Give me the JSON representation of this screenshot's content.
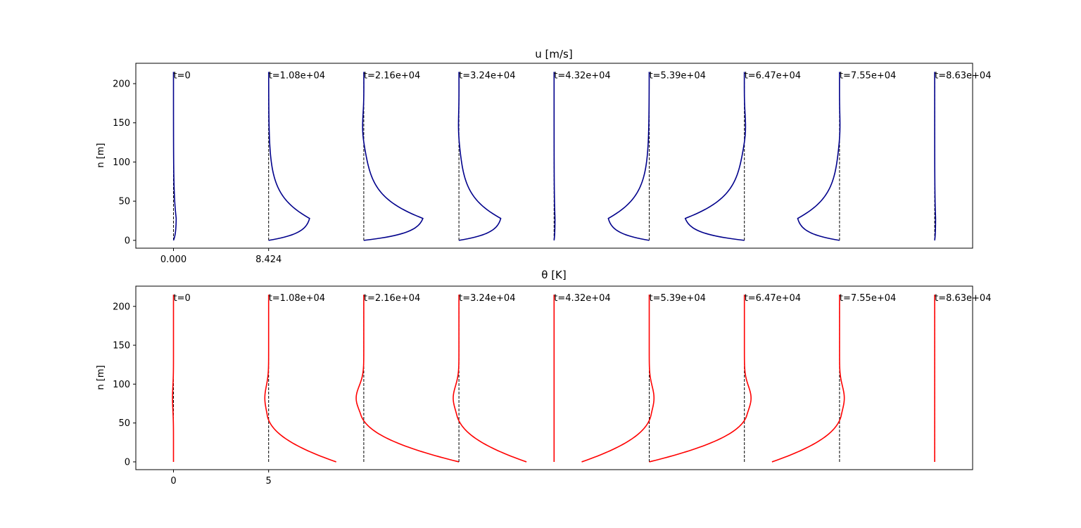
{
  "chart_data": [
    {
      "type": "line",
      "title": "u [m/s]",
      "ylabel": "n [m]",
      "xlabel": "",
      "ylim": [
        -10,
        226
      ],
      "yticks": [
        0,
        50,
        100,
        150,
        200
      ],
      "xtick_labels": [
        "0.000",
        "8.424"
      ],
      "line_color": "#00008b",
      "baseline_color": "#000000",
      "baseline_style": "dashed",
      "panels": [
        {
          "label": "t=0",
          "peak": 0.03,
          "hump": 0.0
        },
        {
          "label": "t=1.08e+04",
          "peak": 0.45,
          "hump": 0.0
        },
        {
          "label": "t=2.16e+04",
          "peak": 0.65,
          "hump": -0.02
        },
        {
          "label": "t=3.24e+04",
          "peak": 0.46,
          "hump": -0.01
        },
        {
          "label": "t=4.32e+04",
          "peak": 0.01,
          "hump": 0.0
        },
        {
          "label": "t=5.39e+04",
          "peak": -0.45,
          "hump": 0.0
        },
        {
          "label": "t=6.47e+04",
          "peak": -0.65,
          "hump": 0.02
        },
        {
          "label": "t=7.55e+04",
          "peak": -0.46,
          "hump": 0.01
        },
        {
          "label": "t=8.63e+04",
          "peak": 0.01,
          "hump": 0.0
        }
      ]
    },
    {
      "type": "line",
      "title": "θ [K]",
      "ylabel": "n [m]",
      "xlabel": "",
      "ylim": [
        -10,
        226
      ],
      "yticks": [
        0,
        50,
        100,
        150,
        200
      ],
      "xtick_labels": [
        "0",
        "5"
      ],
      "line_color": "#ff0000",
      "baseline_color": "#000000",
      "baseline_style": "dashed",
      "panels": [
        {
          "label": "t=0",
          "surface": 0.0,
          "bump": -0.01
        },
        {
          "label": "t=1.08e+04",
          "surface": 0.71,
          "bump": -0.04
        },
        {
          "label": "t=2.16e+04",
          "surface": 1.0,
          "bump": -0.08
        },
        {
          "label": "t=3.24e+04",
          "surface": 0.71,
          "bump": -0.06
        },
        {
          "label": "t=4.32e+04",
          "surface": 0.0,
          "bump": 0.0
        },
        {
          "label": "t=5.39e+04",
          "surface": -0.71,
          "bump": 0.05
        },
        {
          "label": "t=6.47e+04",
          "surface": -1.0,
          "bump": 0.07
        },
        {
          "label": "t=7.55e+04",
          "surface": -0.71,
          "bump": 0.05
        },
        {
          "label": "t=8.63e+04",
          "surface": 0.0,
          "bump": 0.0
        }
      ]
    }
  ]
}
